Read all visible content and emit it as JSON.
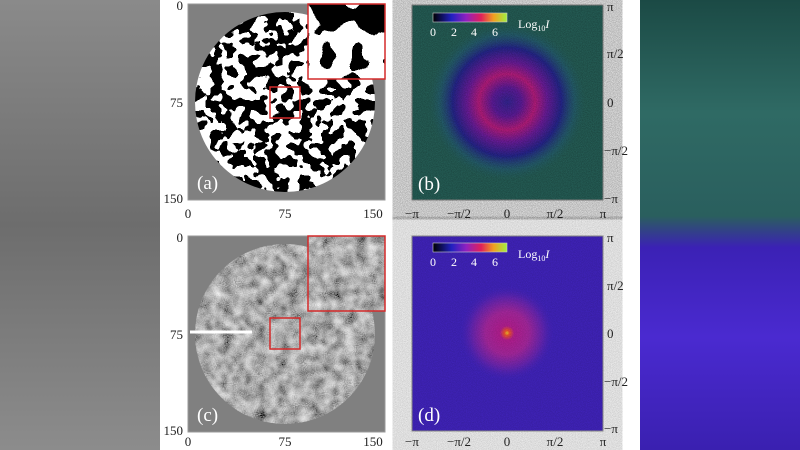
{
  "panels": {
    "a": {
      "label": "(a)",
      "x_ticks": [
        "0",
        "75",
        "150"
      ],
      "y_ticks": [
        "0",
        "75",
        "150"
      ]
    },
    "b": {
      "label": "(b)",
      "x_ticks": [
        "−π",
        "−π/2",
        "0",
        "π/2",
        "π"
      ],
      "y_ticks": [
        "π",
        "π/2",
        "0",
        "−π/2",
        "−π"
      ],
      "colorbar_ticks": [
        "0",
        "2",
        "4",
        "6"
      ],
      "colorbar_label_base": "Log",
      "colorbar_label_sub": "10",
      "colorbar_label_var": "I"
    },
    "c": {
      "label": "(c)",
      "x_ticks": [
        "0",
        "75",
        "150"
      ],
      "y_ticks": [
        "0",
        "75",
        "150"
      ]
    },
    "d": {
      "label": "(d)",
      "x_ticks": [
        "−π",
        "−π/2",
        "0",
        "π/2",
        "π"
      ],
      "y_ticks": [
        "π",
        "π/2",
        "0",
        "−π/2",
        "−π"
      ],
      "colorbar_ticks": [
        "0",
        "2",
        "4",
        "6"
      ],
      "colorbar_label_base": "Log",
      "colorbar_label_sub": "10",
      "colorbar_label_var": "I"
    }
  },
  "colors": {
    "inset_frame": "#d42a2a",
    "panel_bg": "#808080",
    "b_bg": "#2a6b62",
    "d_bg": "#4526c8"
  }
}
